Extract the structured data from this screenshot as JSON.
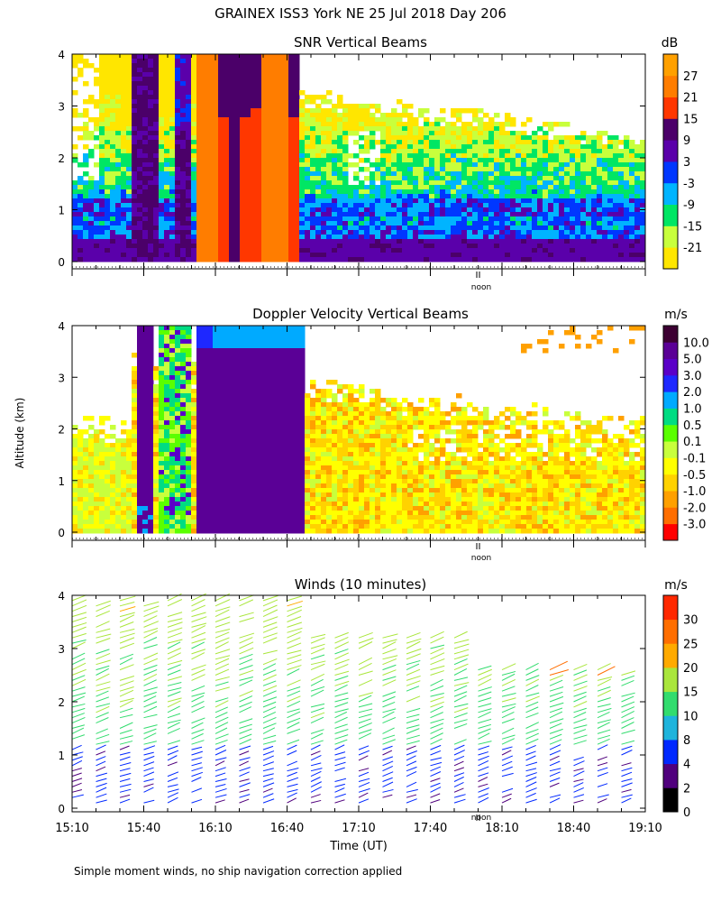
{
  "chart_data": [
    {
      "type": "heatmap",
      "title": "SNR Vertical Beams",
      "unit": "dB",
      "ylim": [
        0,
        4
      ],
      "yticks": [
        "0",
        "1",
        "2",
        "3",
        "4"
      ],
      "colorbar": {
        "labels": [
          "27",
          "21",
          "15",
          "9",
          "3",
          "-3",
          "-9",
          "-15",
          "-21"
        ],
        "colors": [
          "#ffa000",
          "#ff7d00",
          "#ff3700",
          "#4b0069",
          "#5a00aa",
          "#0037ff",
          "#00b4ff",
          "#00e664",
          "#c8ff3c",
          "#ffe600"
        ]
      },
      "marker": "noon"
    },
    {
      "type": "heatmap",
      "title": "Doppler Velocity Vertical Beams",
      "unit": "m/s",
      "ylim": [
        0,
        4
      ],
      "yticks": [
        "0",
        "1",
        "2",
        "3",
        "4"
      ],
      "colorbar": {
        "labels": [
          "10.0",
          "5.0",
          "3.0",
          "2.0",
          "1.0",
          "0.5",
          "0.1",
          "-0.1",
          "-0.5",
          "-1.0",
          "-2.0",
          "-3.0"
        ],
        "colors": [
          "#3c0032",
          "#5a0096",
          "#5a00c8",
          "#1e28ff",
          "#00aaff",
          "#00dc82",
          "#5aff00",
          "#c8ff3c",
          "#ffff00",
          "#ffd200",
          "#ffa000",
          "#ff6e00",
          "#ff0000"
        ]
      },
      "marker": "noon"
    },
    {
      "type": "scatter",
      "title": "Winds (10 minutes)",
      "unit": "m/s",
      "ylim": [
        0,
        4
      ],
      "yticks": [
        "0",
        "1",
        "2",
        "3",
        "4"
      ],
      "xticks": [
        "15:10",
        "15:40",
        "16:10",
        "16:40",
        "17:10",
        "17:40",
        "18:10",
        "18:40",
        "19:10"
      ],
      "xlabel": "Time (UT)",
      "colorbar": {
        "labels": [
          "30",
          "25",
          "20",
          "15",
          "10",
          "8",
          "4",
          "2",
          "0"
        ],
        "colors": [
          "#ff2800",
          "#ff6e00",
          "#ffaa00",
          "#aae63c",
          "#32dc6e",
          "#1eb4dc",
          "#0028ff",
          "#50007d",
          "#000000"
        ]
      },
      "marker": "noon"
    }
  ],
  "header": {
    "title": "GRAINEX ISS3 York NE  25 Jul 2018 Day 206",
    "ylabel": "Altitude (km)"
  },
  "footer": {
    "note": "Simple moment winds, no ship navigation correction applied"
  }
}
